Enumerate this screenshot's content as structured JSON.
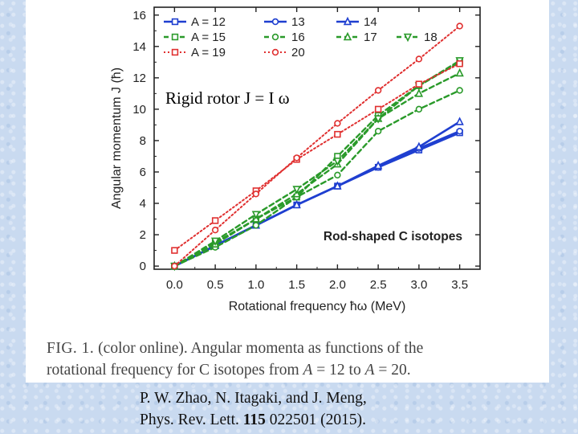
{
  "annotation": "Rigid rotor J = I ω",
  "caption": {
    "fig_label": "FIG. 1.",
    "line1_rest": " (color online). Angular momenta as functions of the",
    "line2_start": "rotational frequency for C isotopes from ",
    "line2_a1": "A",
    "line2_mid": " = 12 to ",
    "line2_a2": "A",
    "line2_end": " = 20."
  },
  "citation": {
    "line1": "P. W. Zhao, N. Itagaki, and J. Meng,",
    "line2_pre": "Phys. Rev. Lett. ",
    "volume": "115",
    "line2_post": " 022501 (2015)."
  },
  "chart_data": {
    "type": "line",
    "xlabel": "Rotational frequency ħω (MeV)",
    "ylabel": "Angular momentum J (ħ)",
    "inner_label": "Rod-shaped C isotopes",
    "xlim": [
      -0.25,
      3.75
    ],
    "ylim": [
      -0.2,
      16.5
    ],
    "xticks": [
      0.0,
      0.5,
      1.0,
      1.5,
      2.0,
      2.5,
      3.0,
      3.5
    ],
    "xtick_labels": [
      "0.0",
      "0.5",
      "1.0",
      "1.5",
      "2.0",
      "2.5",
      "3.0",
      "3.5"
    ],
    "yticks": [
      0,
      2,
      4,
      6,
      8,
      10,
      12,
      14,
      16
    ],
    "ytick_labels": [
      "0",
      "2",
      "4",
      "6",
      "8",
      "10",
      "12",
      "14",
      "16"
    ],
    "legend_placement": "top-left",
    "x": [
      0.0,
      0.5,
      1.0,
      1.5,
      2.0,
      2.5,
      3.0,
      3.5
    ],
    "series": [
      {
        "name": "A = 12",
        "color": "#1f3fd0",
        "style": "solid",
        "marker": "square",
        "values": [
          0.0,
          1.3,
          2.6,
          3.9,
          5.1,
          6.3,
          7.4,
          8.5
        ]
      },
      {
        "name": "13",
        "color": "#1f3fd0",
        "style": "solid",
        "marker": "circle",
        "values": [
          0.0,
          1.3,
          2.6,
          3.9,
          5.1,
          6.3,
          7.5,
          8.6
        ]
      },
      {
        "name": "14",
        "color": "#1f3fd0",
        "style": "solid",
        "marker": "triangle-up",
        "values": [
          0.0,
          1.3,
          2.6,
          3.9,
          5.1,
          6.4,
          7.6,
          9.2
        ]
      },
      {
        "name": "A = 15",
        "color": "#2a9a2a",
        "style": "dashed",
        "marker": "square",
        "values": [
          0.0,
          1.5,
          3.0,
          4.4,
          7.0,
          9.6,
          11.5,
          13.0
        ]
      },
      {
        "name": "16",
        "color": "#2a9a2a",
        "style": "dashed",
        "marker": "circle",
        "values": [
          0.0,
          1.2,
          2.6,
          4.4,
          5.8,
          8.6,
          10.0,
          11.2
        ]
      },
      {
        "name": "17",
        "color": "#2a9a2a",
        "style": "dashed",
        "marker": "triangle-up",
        "values": [
          0.0,
          1.4,
          3.0,
          4.6,
          6.5,
          9.4,
          11.0,
          12.3
        ]
      },
      {
        "name": "18",
        "color": "#2a9a2a",
        "style": "dashed",
        "marker": "triangle-down",
        "values": [
          0.0,
          1.6,
          3.3,
          4.9,
          6.7,
          9.4,
          11.5,
          13.1
        ]
      },
      {
        "name": "A = 19",
        "color": "#e03030",
        "style": "dotted",
        "marker": "square",
        "values": [
          1.0,
          2.9,
          4.8,
          6.8,
          8.4,
          10.0,
          11.6,
          12.9
        ]
      },
      {
        "name": "20",
        "color": "#e03030",
        "style": "dotted",
        "marker": "circle",
        "values": [
          0.0,
          2.3,
          4.6,
          6.9,
          9.1,
          11.2,
          13.2,
          15.3
        ]
      }
    ]
  }
}
